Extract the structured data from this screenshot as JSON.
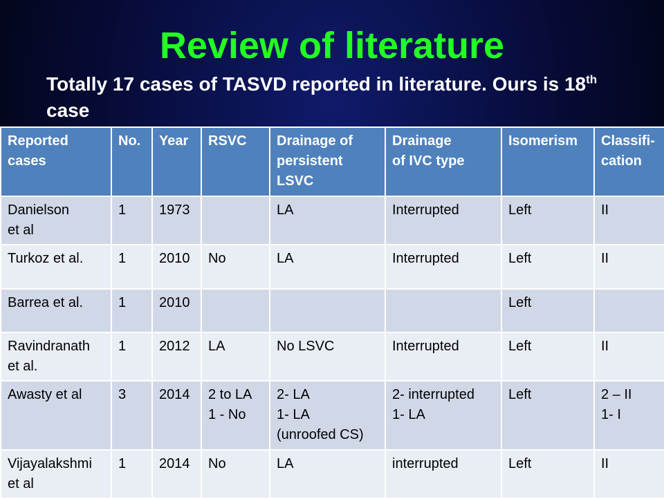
{
  "slide": {
    "title": "Review of literature",
    "subtitle_main": "Totally 17 cases of TASVD reported in literature. Ours is 18",
    "subtitle_sup": "th",
    "subtitle_end": " case"
  },
  "table": {
    "headers": [
      "Reported\ncases",
      "No.",
      "Year",
      "RSVC",
      "Drainage of\npersistent\nLSVC",
      "Drainage\nof IVC type",
      "Isomerism",
      "Classifi-\ncation"
    ],
    "rows": [
      [
        "Danielson\net al",
        "1",
        "1973",
        "",
        "LA",
        "Interrupted",
        "Left",
        "II"
      ],
      [
        "Turkoz et al.",
        "1",
        "2010",
        "No",
        "LA",
        "Interrupted",
        "Left",
        "II"
      ],
      [
        "Barrea et al.",
        "1",
        "2010",
        "",
        "",
        "",
        "Left",
        ""
      ],
      [
        "Ravindranath\net al.",
        "1",
        "2012",
        "LA",
        "No LSVC",
        "Interrupted",
        "Left",
        "II"
      ],
      [
        "Awasty et al",
        "3",
        "2014",
        "2 to LA\n1 - No",
        "2- LA\n1- LA\n(unroofed CS)",
        "2- interrupted\n1- LA",
        "Left",
        "2 – II\n1- I"
      ],
      [
        "Vijayalakshmi\net al",
        "1",
        "2014",
        "No",
        "LA",
        "interrupted",
        "Left",
        "II"
      ]
    ]
  }
}
